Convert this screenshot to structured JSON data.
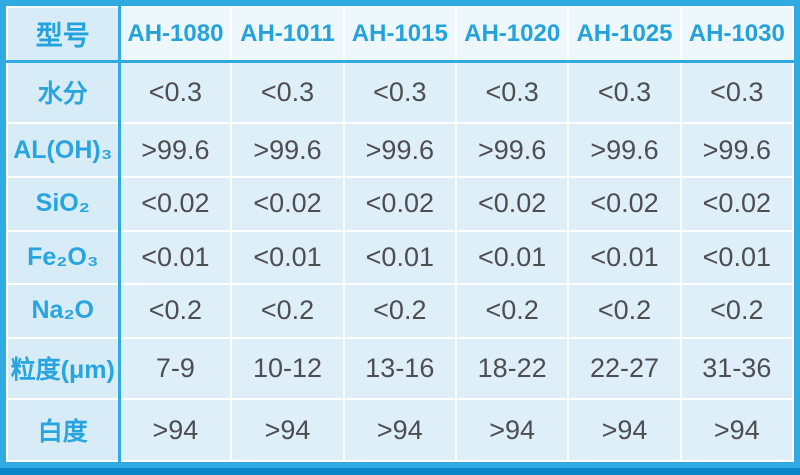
{
  "chart_data": {
    "type": "table",
    "corner_header": "型号",
    "columns": [
      "AH-1080",
      "AH-1011",
      "AH-1015",
      "AH-1020",
      "AH-1025",
      "AH-1030"
    ],
    "rows": [
      {
        "label": "水分",
        "values": [
          "<0.3",
          "<0.3",
          "<0.3",
          "<0.3",
          "<0.3",
          "<0.3"
        ]
      },
      {
        "label": "AL(OH)₃",
        "values": [
          ">99.6",
          ">99.6",
          ">99.6",
          ">99.6",
          ">99.6",
          ">99.6"
        ]
      },
      {
        "label": "SiO₂",
        "values": [
          "<0.02",
          "<0.02",
          "<0.02",
          "<0.02",
          "<0.02",
          "<0.02"
        ]
      },
      {
        "label": "Fe₂O₃",
        "values": [
          "<0.01",
          "<0.01",
          "<0.01",
          "<0.01",
          "<0.01",
          "<0.01"
        ]
      },
      {
        "label": "Na₂O",
        "values": [
          "<0.2",
          "<0.2",
          "<0.2",
          "<0.2",
          "<0.2",
          "<0.2"
        ]
      },
      {
        "label": "粒度(μm)",
        "values": [
          "7-9",
          "10-12",
          "13-16",
          "18-22",
          "22-27",
          "31-36"
        ]
      },
      {
        "label": "白度",
        "values": [
          ">94",
          ">94",
          ">94",
          ">94",
          ">94",
          ">94"
        ]
      }
    ]
  },
  "colors": {
    "outer_border": "#2fabe2",
    "bottom_accent": "#0e84c8",
    "header_divider": "#2fabe2",
    "grid": "#ffffff",
    "header_bg": "#eef7fc",
    "label_column_bg": "#d8ecf8",
    "cell_bg": "#deeffa",
    "header_text": "#23a2dc",
    "label_text": "#28a5de",
    "value_text": "#4e4e52"
  }
}
